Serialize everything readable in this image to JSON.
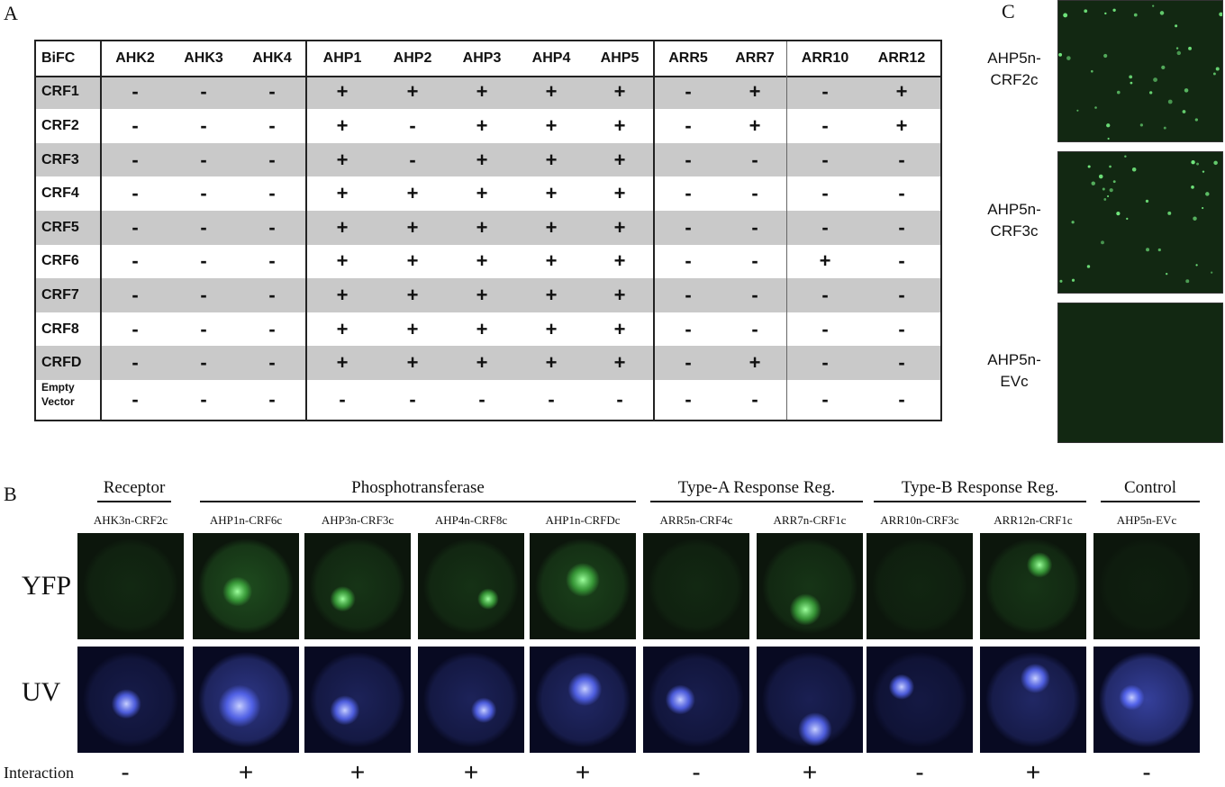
{
  "panels": {
    "a": "A",
    "b": "B",
    "c": "C"
  },
  "table": {
    "corner": "BiFC",
    "columns": [
      "AHK2",
      "AHK3",
      "AHK4",
      "AHP1",
      "AHP2",
      "AHP3",
      "AHP4",
      "AHP5",
      "ARR5",
      "ARR7",
      "ARR10",
      "ARR12"
    ],
    "rows": [
      {
        "label": "CRF1",
        "values": [
          "-",
          "-",
          "-",
          "+",
          "+",
          "+",
          "+",
          "+",
          "-",
          "+",
          "-",
          "+"
        ]
      },
      {
        "label": "CRF2",
        "values": [
          "-",
          "-",
          "-",
          "+",
          "-",
          "+",
          "+",
          "+",
          "-",
          "+",
          "-",
          "+"
        ]
      },
      {
        "label": "CRF3",
        "values": [
          "-",
          "-",
          "-",
          "+",
          "-",
          "+",
          "+",
          "+",
          "-",
          "-",
          "-",
          "-"
        ]
      },
      {
        "label": "CRF4",
        "values": [
          "-",
          "-",
          "-",
          "+",
          "+",
          "+",
          "+",
          "+",
          "-",
          "-",
          "-",
          "-"
        ]
      },
      {
        "label": "CRF5",
        "values": [
          "-",
          "-",
          "-",
          "+",
          "+",
          "+",
          "+",
          "+",
          "-",
          "-",
          "-",
          "-"
        ]
      },
      {
        "label": "CRF6",
        "values": [
          "-",
          "-",
          "-",
          "+",
          "+",
          "+",
          "+",
          "+",
          "-",
          "-",
          "+",
          "-"
        ]
      },
      {
        "label": "CRF7",
        "values": [
          "-",
          "-",
          "-",
          "+",
          "+",
          "+",
          "+",
          "+",
          "-",
          "-",
          "-",
          "-"
        ]
      },
      {
        "label": "CRF8",
        "values": [
          "-",
          "-",
          "-",
          "+",
          "+",
          "+",
          "+",
          "+",
          "-",
          "-",
          "-",
          "-"
        ]
      },
      {
        "label": "CRFD",
        "values": [
          "-",
          "-",
          "-",
          "+",
          "+",
          "+",
          "+",
          "+",
          "-",
          "+",
          "-",
          "-"
        ]
      },
      {
        "label": "Empty Vector",
        "label_lines": [
          "Empty",
          "Vector"
        ],
        "values": [
          "-",
          "-",
          "-",
          "-",
          "-",
          "-",
          "-",
          "-",
          "-",
          "-",
          "-",
          "-"
        ]
      }
    ]
  },
  "panel_c": {
    "items": [
      {
        "label_lines": [
          "AHP5n-",
          "CRF2c"
        ],
        "signal": "punctate"
      },
      {
        "label_lines": [
          "AHP5n-",
          "CRF3c"
        ],
        "signal": "punctate"
      },
      {
        "label_lines": [
          "AHP5n-",
          "EVc"
        ],
        "signal": "none"
      }
    ]
  },
  "panel_b": {
    "groups": [
      {
        "title": "Receptor"
      },
      {
        "title": "Phosphotransferase"
      },
      {
        "title": "Type-A Response Reg."
      },
      {
        "title": "Type-B Response Reg."
      },
      {
        "title": "Control"
      }
    ],
    "row_labels": {
      "yfp": "YFP",
      "uv": "UV",
      "interaction": "Interaction"
    },
    "conditions": [
      {
        "label": "AHK3n-CRF2c",
        "interaction": "-"
      },
      {
        "label": "AHP1n-CRF6c",
        "interaction": "+"
      },
      {
        "label": "AHP3n-CRF3c",
        "interaction": "+"
      },
      {
        "label": "AHP4n-CRF8c",
        "interaction": "+"
      },
      {
        "label": "AHP1n-CRFDc",
        "interaction": "+"
      },
      {
        "label": "ARR5n-CRF4c",
        "interaction": "-"
      },
      {
        "label": "ARR7n-CRF1c",
        "interaction": "+"
      },
      {
        "label": "ARR10n-CRF3c",
        "interaction": "-"
      },
      {
        "label": "ARR12n-CRF1c",
        "interaction": "+"
      },
      {
        "label": "AHP5n-EVc",
        "interaction": "-"
      }
    ]
  },
  "colors": {
    "row_shade": "#c9c9c9",
    "yfp_background": "#0c160c",
    "yfp_signal": "#3fae3f",
    "uv_background": "#080a22",
    "uv_signal": "#5a6cff"
  }
}
